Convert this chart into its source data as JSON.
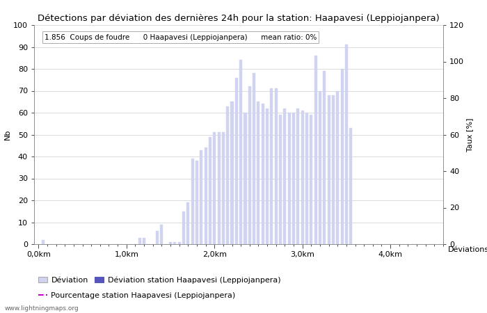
{
  "title": "Détections par déviation des dernières 24h pour la station: Haapavesi (Leppiojanpera)",
  "annotation": "1.856  Coups de foudre      0 Haapavesi (Leppiojanpera)      mean ratio: 0%",
  "ylabel_left": "Nb",
  "ylabel_right": "Taux [%]",
  "xlabel": "Déviations",
  "background_color": "#ffffff",
  "bar_color_light": "#d0d4f0",
  "bar_color_dark": "#5555bb",
  "line_color": "#cc00cc",
  "bar_positions": [
    0.05,
    0.1,
    0.15,
    0.2,
    0.25,
    0.3,
    0.35,
    0.4,
    0.45,
    0.5,
    0.55,
    0.6,
    0.65,
    0.7,
    0.75,
    0.8,
    0.85,
    0.9,
    0.95,
    1.0,
    1.05,
    1.1,
    1.15,
    1.2,
    1.25,
    1.3,
    1.35,
    1.4,
    1.45,
    1.5,
    1.55,
    1.6,
    1.65,
    1.7,
    1.75,
    1.8,
    1.85,
    1.9,
    1.95,
    2.0,
    2.05,
    2.1,
    2.15,
    2.2,
    2.25,
    2.3,
    2.35,
    2.4,
    2.45,
    2.5,
    2.55,
    2.6,
    2.65,
    2.7,
    2.75,
    2.8,
    2.85,
    2.9,
    2.95,
    3.0,
    3.05,
    3.1,
    3.15,
    3.2,
    3.25,
    3.3,
    3.35,
    3.4,
    3.45,
    3.5,
    3.55,
    3.6,
    3.65,
    3.7,
    3.75,
    3.8,
    3.85,
    3.9,
    3.95,
    4.0,
    4.05,
    4.1,
    4.15,
    4.2,
    4.25,
    4.3,
    4.35,
    4.4,
    4.45,
    4.5
  ],
  "bar_values": [
    2,
    0,
    0,
    0,
    0,
    0,
    0,
    0,
    0,
    0,
    0,
    0,
    0,
    0,
    0,
    0,
    0,
    0,
    0,
    0,
    0,
    0,
    3,
    3,
    0,
    0,
    6,
    9,
    0,
    1,
    1,
    1,
    15,
    19,
    39,
    38,
    43,
    44,
    49,
    51,
    51,
    51,
    63,
    65,
    76,
    84,
    60,
    72,
    78,
    65,
    64,
    62,
    71,
    71,
    59,
    62,
    60,
    60,
    62,
    61,
    60,
    59,
    86,
    70,
    79,
    68,
    68,
    70,
    80,
    91,
    53,
    0,
    0,
    0,
    0,
    0,
    0,
    0,
    0,
    0,
    0,
    0,
    0,
    0,
    0,
    0,
    0,
    0,
    0,
    0
  ],
  "ylim_left": [
    0,
    100
  ],
  "ylim_right": [
    0,
    120
  ],
  "yticks_left": [
    0,
    10,
    20,
    30,
    40,
    50,
    60,
    70,
    80,
    90,
    100
  ],
  "yticks_right": [
    0,
    20,
    40,
    60,
    80,
    100,
    120
  ],
  "xticks": [
    0.0,
    1.0,
    2.0,
    3.0,
    4.0
  ],
  "xticklabels": [
    "0,0km",
    "1,0km",
    "2,0km",
    "3,0km",
    "4,0km"
  ],
  "xlim": [
    -0.05,
    4.6
  ],
  "legend_label_light": "Déviation",
  "legend_label_dark": "Déviation station Haapavesi (Leppiojanpera)",
  "legend_label_line": "Pourcentage station Haapavesi (Leppiojanpera)",
  "watermark": "www.lightningmaps.org",
  "title_fontsize": 9.5,
  "axis_fontsize": 8,
  "tick_fontsize": 8,
  "annotation_fontsize": 7.5,
  "bar_width": 0.032
}
